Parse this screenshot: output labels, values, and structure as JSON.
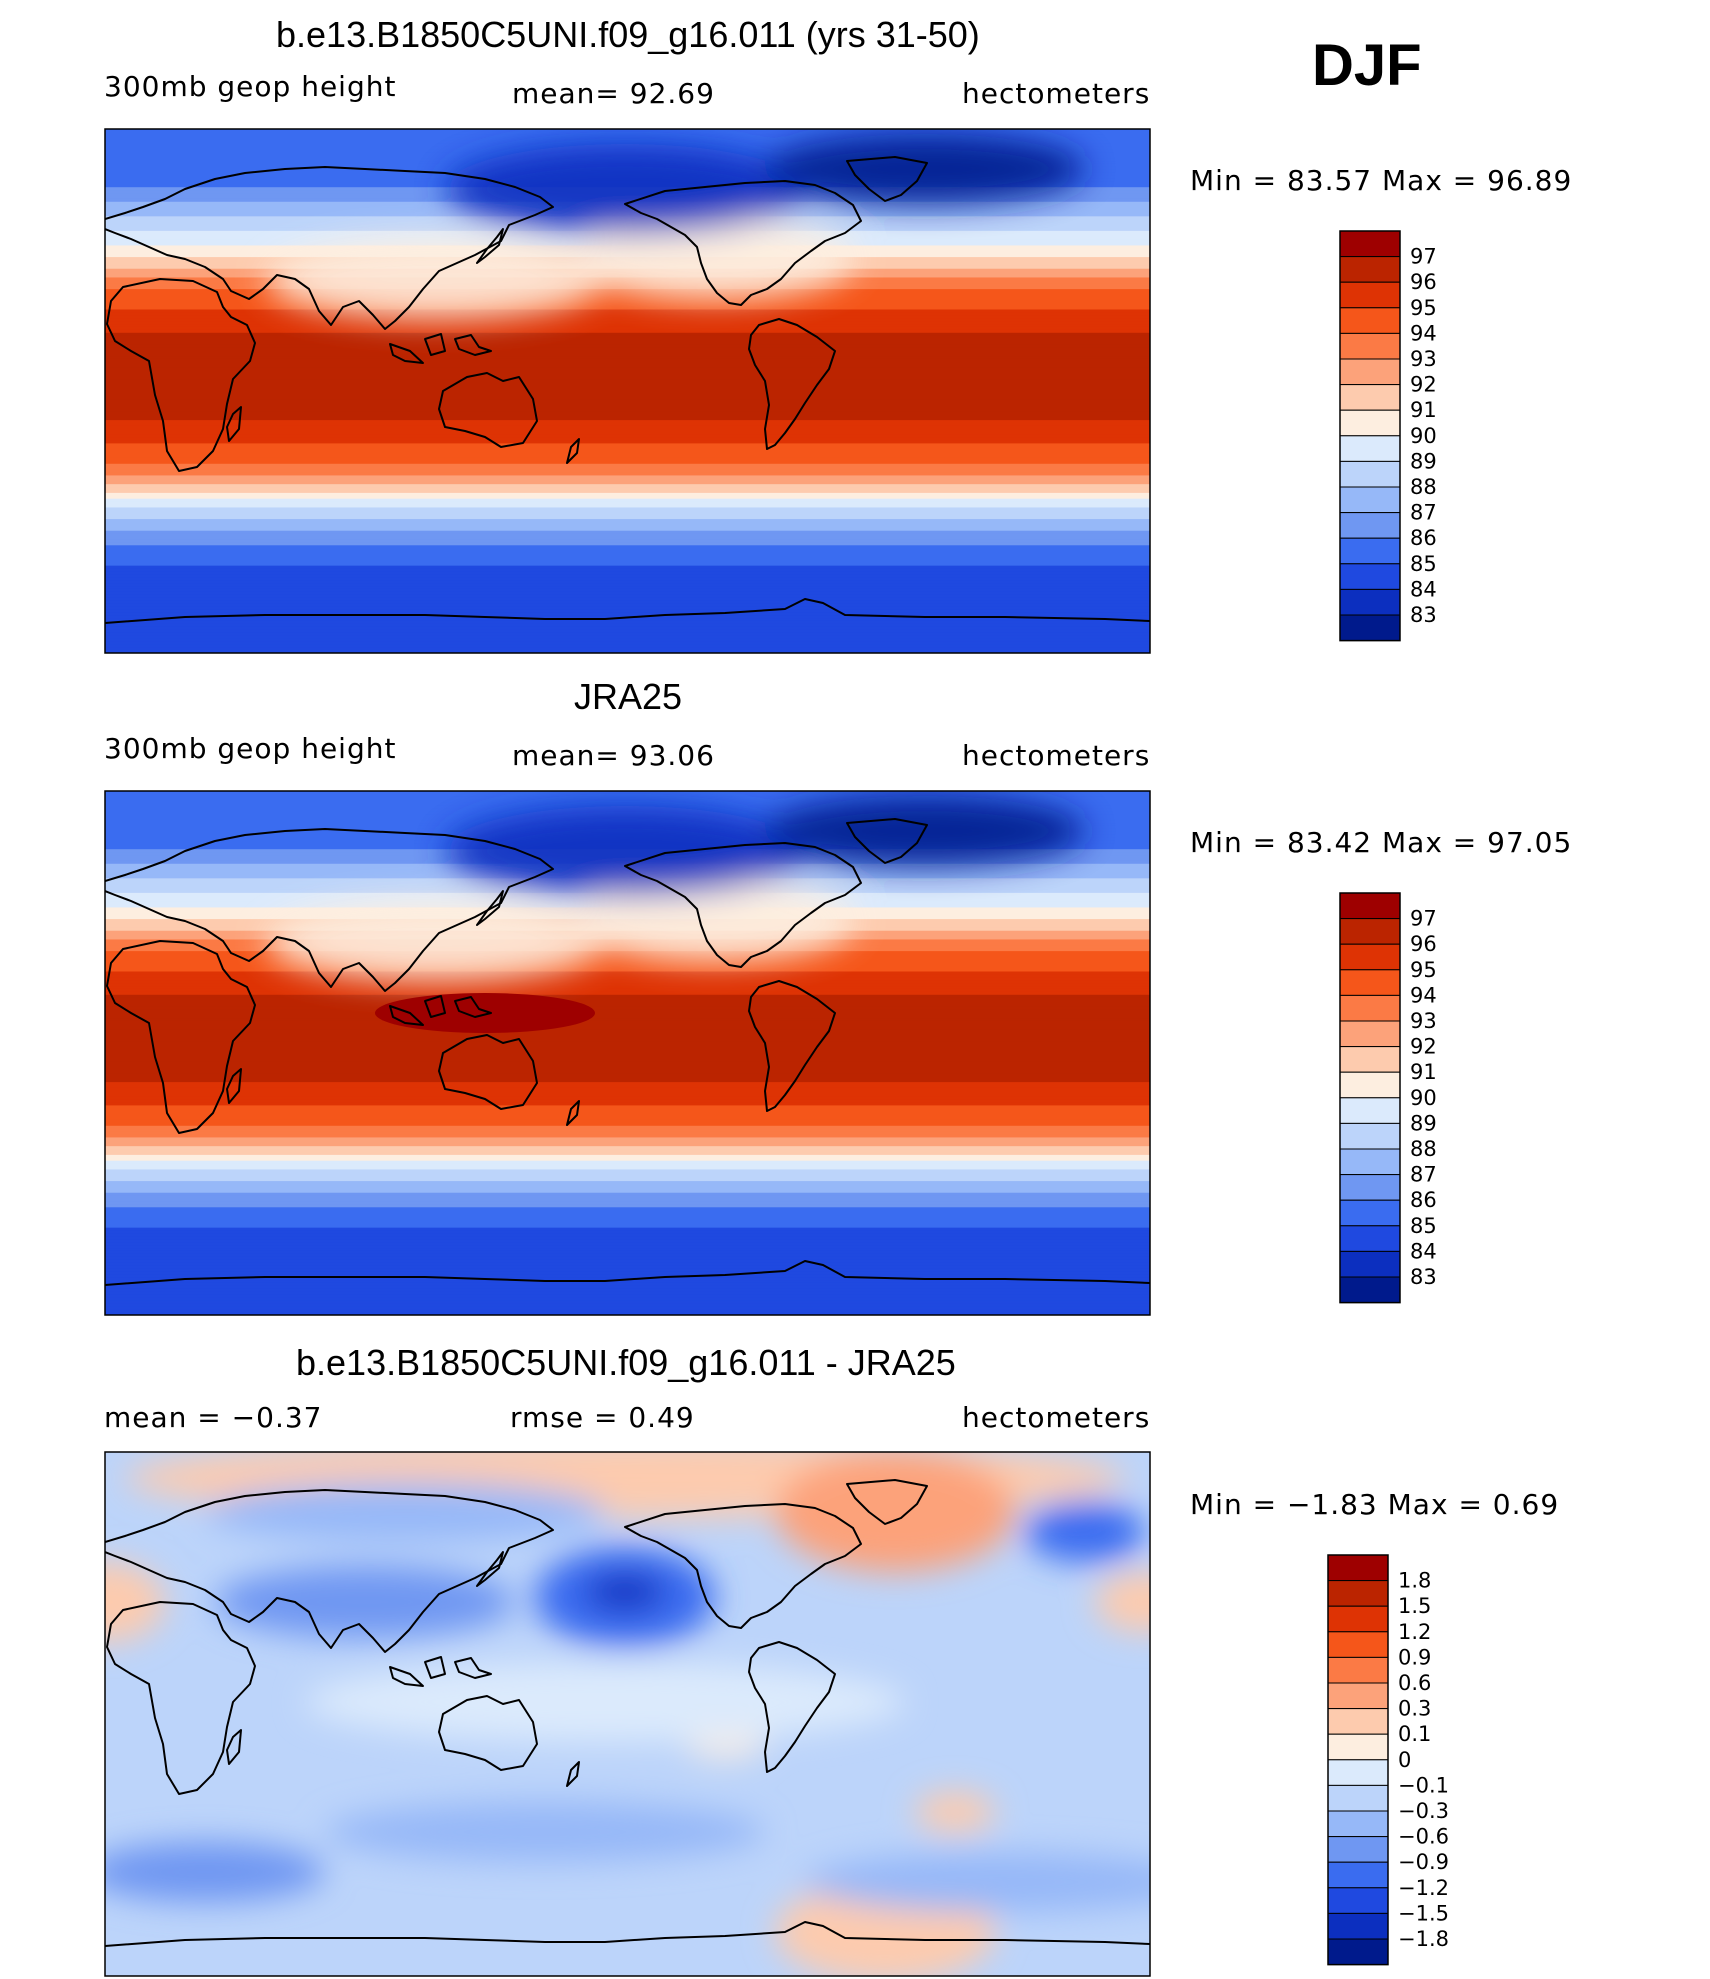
{
  "season": "DJF",
  "chart_data": [
    {
      "type": "heatmap",
      "title": "b.e13.B1850C5UNI.f09_g16.011 (yrs 31-50)",
      "variable": "300mb geop height",
      "stat1": "mean=   92.69",
      "stat2": "",
      "units": "hectometers",
      "minmax": "Min =   83.57  Max =   96.89",
      "min": 83.57,
      "max": 96.89,
      "legend_levels": [
        "97",
        "96",
        "95",
        "94",
        "93",
        "92",
        "91",
        "90",
        "89",
        "88",
        "87",
        "86",
        "85",
        "84",
        "83"
      ],
      "legend_colors": [
        "#9e0000",
        "#bb2400",
        "#de3304",
        "#f5561a",
        "#fb7a45",
        "#fca27a",
        "#fdcbae",
        "#fdeee0",
        "#dbeafc",
        "#bcd4fa",
        "#96b8f8",
        "#6f97f2",
        "#3a6cf0",
        "#1f49e0",
        "#0c2fbf",
        "#001a8c"
      ],
      "bands_lat_hm": [
        [
          90,
          85
        ],
        [
          70,
          86
        ],
        [
          60,
          88
        ],
        [
          50,
          90
        ],
        [
          42,
          92
        ],
        [
          35,
          94
        ],
        [
          28,
          95
        ],
        [
          20,
          96
        ],
        [
          -10,
          96
        ],
        [
          -18,
          95
        ],
        [
          -25,
          94
        ],
        [
          -32,
          92
        ],
        [
          -40,
          89
        ],
        [
          -50,
          86.5
        ],
        [
          -60,
          85
        ],
        [
          -70,
          84.5
        ],
        [
          -90,
          84.2
        ]
      ]
    },
    {
      "type": "heatmap",
      "title": "JRA25",
      "variable": "300mb geop height",
      "stat1": "mean=   93.06",
      "stat2": "",
      "units": "hectometers",
      "minmax": "Min =   83.42  Max =   97.05",
      "min": 83.42,
      "max": 97.05,
      "legend_levels": [
        "97",
        "96",
        "95",
        "94",
        "93",
        "92",
        "91",
        "90",
        "89",
        "88",
        "87",
        "86",
        "85",
        "84",
        "83"
      ],
      "legend_colors": [
        "#9e0000",
        "#bb2400",
        "#de3304",
        "#f5561a",
        "#fb7a45",
        "#fca27a",
        "#fdcbae",
        "#fdeee0",
        "#dbeafc",
        "#bcd4fa",
        "#96b8f8",
        "#6f97f2",
        "#3a6cf0",
        "#1f49e0",
        "#0c2fbf",
        "#001a8c"
      ],
      "bands_lat_hm": [
        [
          90,
          85
        ],
        [
          70,
          86
        ],
        [
          60,
          88
        ],
        [
          50,
          90
        ],
        [
          42,
          92
        ],
        [
          35,
          94
        ],
        [
          28,
          95
        ],
        [
          20,
          96
        ],
        [
          -10,
          96
        ],
        [
          -18,
          95
        ],
        [
          -25,
          94
        ],
        [
          -32,
          92
        ],
        [
          -40,
          89
        ],
        [
          -50,
          86.5
        ],
        [
          -60,
          85
        ],
        [
          -70,
          84.5
        ],
        [
          -90,
          84.2
        ]
      ]
    },
    {
      "type": "heatmap",
      "title": "b.e13.B1850C5UNI.f09_g16.011 - JRA25",
      "variable": "",
      "stat1": "mean =   −0.37",
      "stat2": "rmse =    0.49",
      "units": "hectometers",
      "minmax": "Min =   −1.83  Max =    0.69",
      "min": -1.83,
      "max": 0.69,
      "legend_levels": [
        "1.8",
        "1.5",
        "1.2",
        "0.9",
        "0.6",
        "0.3",
        "0.1",
        "0",
        "−0.1",
        "−0.3",
        "−0.6",
        "−0.9",
        "−1.2",
        "−1.5",
        "−1.8"
      ],
      "legend_colors": [
        "#9e0000",
        "#bb2400",
        "#de3304",
        "#f5561a",
        "#fb7a45",
        "#fca27a",
        "#fdcbae",
        "#fdeee0",
        "#dbeafc",
        "#bcd4fa",
        "#96b8f8",
        "#6f97f2",
        "#3a6cf0",
        "#1f49e0",
        "#0c2fbf",
        "#001a8c"
      ]
    }
  ]
}
